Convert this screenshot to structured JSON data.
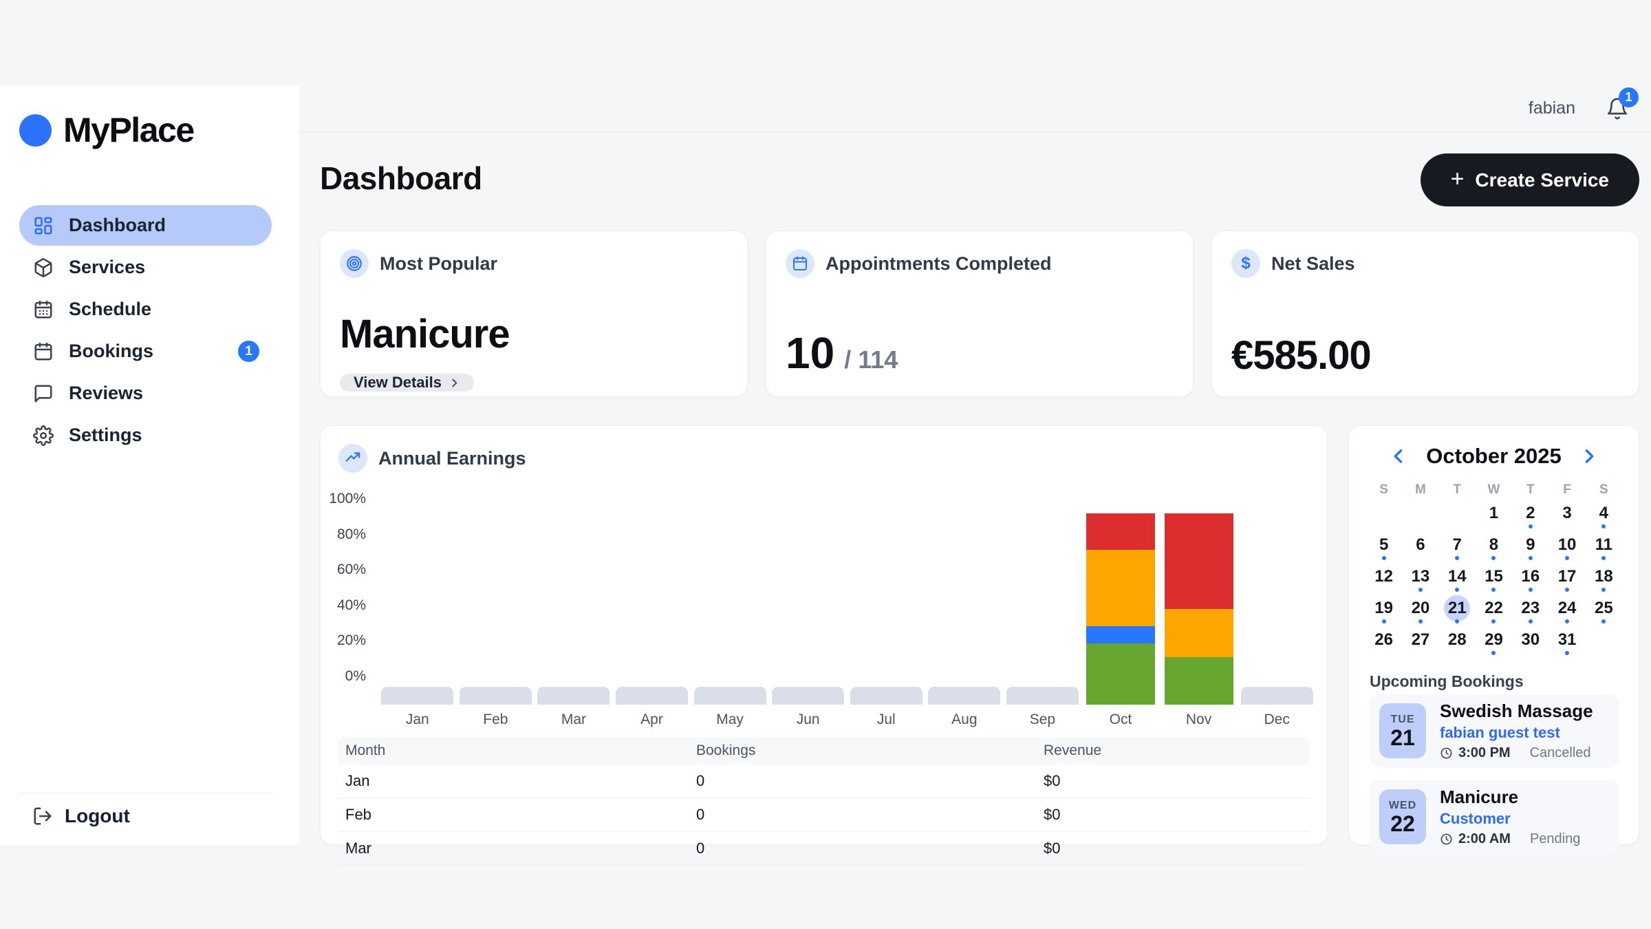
{
  "brand": {
    "name": "MyPlace"
  },
  "header": {
    "username": "fabian",
    "notification_count": "1"
  },
  "sidebar": {
    "items": [
      {
        "label": "Dashboard",
        "icon": "grid",
        "active": true
      },
      {
        "label": "Services",
        "icon": "box",
        "active": false
      },
      {
        "label": "Schedule",
        "icon": "calendar-days",
        "active": false
      },
      {
        "label": "Bookings",
        "icon": "calendar",
        "active": false,
        "badge": "1"
      },
      {
        "label": "Reviews",
        "icon": "chat",
        "active": false
      },
      {
        "label": "Settings",
        "icon": "gear",
        "active": false
      }
    ],
    "logout_label": "Logout"
  },
  "page": {
    "title": "Dashboard",
    "create_button_label": "Create Service"
  },
  "stats": [
    {
      "label": "Most Popular",
      "icon": "target",
      "value": "Manicure",
      "action_label": "View Details"
    },
    {
      "label": "Appointments Completed",
      "icon": "calendar-blue",
      "value": "10",
      "total": "/ 114"
    },
    {
      "label": "Net Sales",
      "icon": "dollar",
      "value": "€585.00"
    }
  ],
  "chart_data": {
    "type": "bar",
    "stacked": true,
    "title": "Annual Earnings",
    "categories": [
      "Jan",
      "Feb",
      "Mar",
      "Apr",
      "May",
      "Jun",
      "Jul",
      "Aug",
      "Sep",
      "Oct",
      "Nov",
      "Dec"
    ],
    "y_ticks": [
      "100%",
      "80%",
      "60%",
      "40%",
      "20%",
      "0%"
    ],
    "ylim": [
      0,
      100
    ],
    "grid": false,
    "legend": "none",
    "series": [
      {
        "name": "segment-green",
        "color": "#66A52E",
        "values": [
          0,
          0,
          0,
          0,
          0,
          0,
          0,
          0,
          0,
          32,
          25,
          0
        ]
      },
      {
        "name": "segment-blue",
        "color": "#2878FF",
        "values": [
          0,
          0,
          0,
          0,
          0,
          0,
          0,
          0,
          0,
          9,
          0,
          0
        ]
      },
      {
        "name": "segment-orange",
        "color": "#FFA500",
        "values": [
          0,
          0,
          0,
          0,
          0,
          0,
          0,
          0,
          0,
          40,
          25,
          0
        ]
      },
      {
        "name": "segment-red",
        "color": "#DC2E2E",
        "values": [
          0,
          0,
          0,
          0,
          0,
          0,
          0,
          0,
          0,
          19,
          50,
          0
        ]
      }
    ],
    "note": "Values are approximate % share of each stacked column (columns reach ~92% on the axis); months without data show a flat gray stub.",
    "empty_stub_color": "#D9DEE8"
  },
  "earnings_table": {
    "headers": [
      "Month",
      "Bookings",
      "Revenue"
    ],
    "rows": [
      [
        "Jan",
        "0",
        "$0"
      ],
      [
        "Feb",
        "0",
        "$0"
      ],
      [
        "Mar",
        "0",
        "$0"
      ]
    ]
  },
  "calendar": {
    "title": "October 2025",
    "weekdays": [
      "S",
      "M",
      "T",
      "W",
      "T",
      "F",
      "S"
    ],
    "start_offset": 3,
    "days_in_month": 31,
    "selected_day": 21,
    "dotted_days": [
      2,
      4,
      5,
      7,
      8,
      9,
      10,
      11,
      13,
      14,
      15,
      16,
      17,
      18,
      19,
      20,
      21,
      22,
      23,
      24,
      25,
      29,
      31
    ]
  },
  "bookings": {
    "heading": "Upcoming Bookings",
    "items": [
      {
        "dow": "TUE",
        "day": "21",
        "title": "Swedish Massage",
        "customer": "fabian guest test",
        "time": "3:00 PM",
        "status": "Cancelled"
      },
      {
        "dow": "WED",
        "day": "22",
        "title": "Manicure",
        "customer": "Customer",
        "time": "2:00 AM",
        "status": "Pending"
      }
    ]
  },
  "colors": {
    "accent_blue": "#2D72FF",
    "active_pill": "#B6CAFA",
    "badge_blue": "#2878FF",
    "page_bg": "#F4F6F8",
    "dark_button": "#171A20",
    "chip_bg": "#DCE7FB",
    "booking_chip": "#BECDF9",
    "selected_day_bg": "#C5D4FB"
  }
}
